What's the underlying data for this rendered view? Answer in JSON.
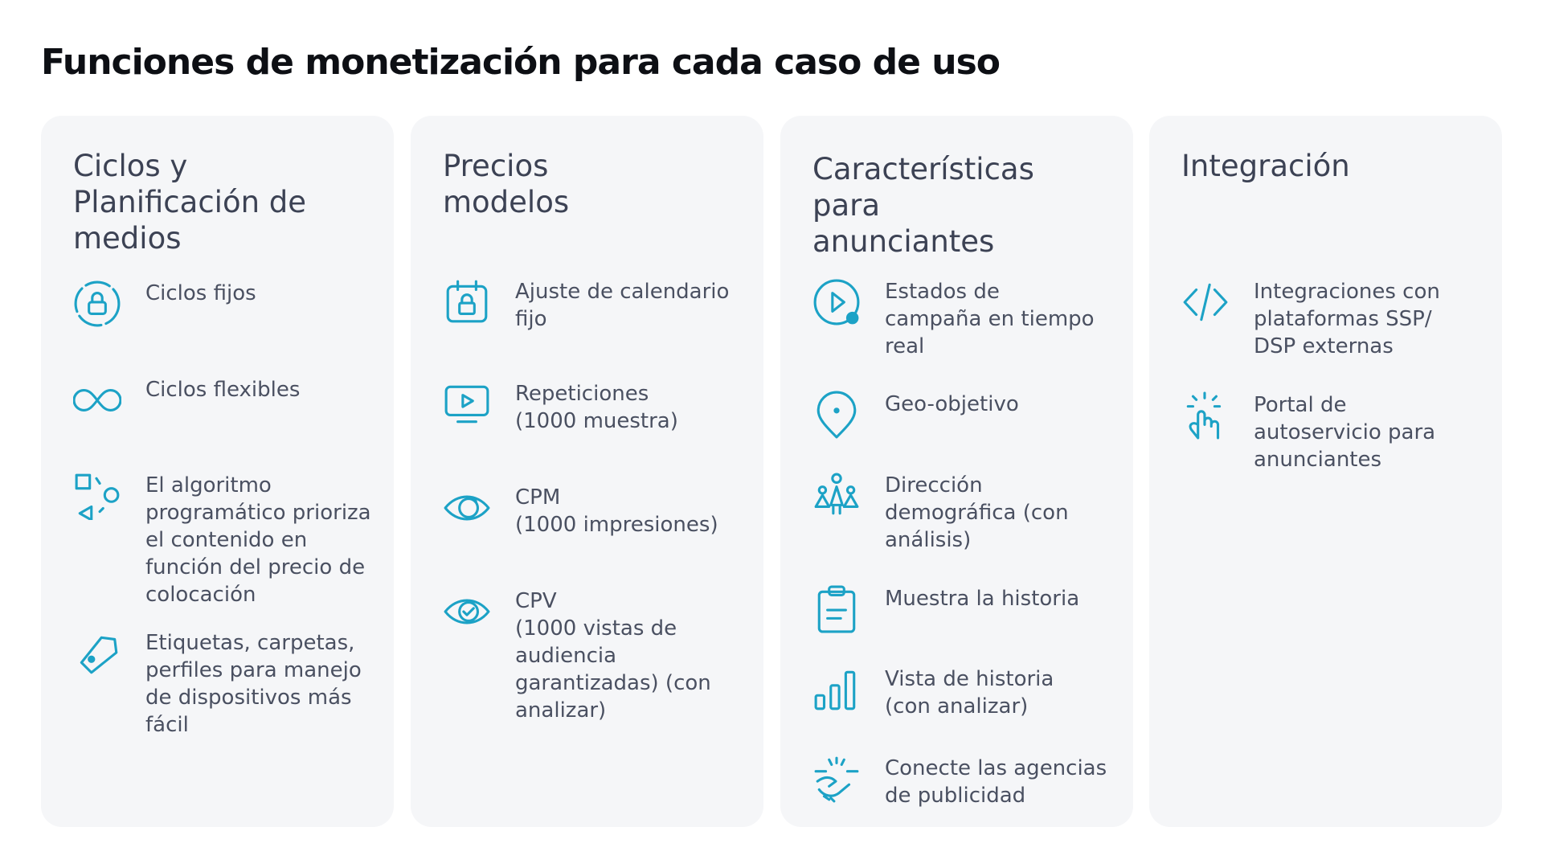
{
  "header": {
    "title": "Funciones de monetización para cada caso de uso"
  },
  "columns": [
    {
      "heading": "Ciclos y\nPlanificación de\nmedios",
      "items": [
        {
          "label": "Ciclos fijos"
        },
        {
          "label": "Ciclos flexibles"
        },
        {
          "label": "El algoritmo\nprogramático prioriza\nel contenido en\nfunción del precio de\ncolocación"
        },
        {
          "label": "Etiquetas, carpetas,\nperfiles para manejo\nde dispositivos más\nfácil"
        }
      ]
    },
    {
      "heading": "Precios\n modelos",
      "items": [
        {
          "label": "Ajuste de calendario\nfijo"
        },
        {
          "label": "Repeticiones\n(1000 muestra)"
        },
        {
          "label": "CPM\n(1000 impresiones)"
        },
        {
          "label": "CPV\n(1000 vistas de\naudiencia\ngarantizadas) (con\nanalizar)"
        }
      ]
    },
    {
      "heading": "Características\npara\nanunciantes",
      "items": [
        {
          "label": "Estados de\ncampaña en tiempo\nreal"
        },
        {
          "label": "Geo-objetivo"
        },
        {
          "label": "Dirección\ndemográfica (con\nanálisis)"
        },
        {
          "label": "Muestra la historia"
        },
        {
          "label": "Vista de historia\n (con analizar)"
        },
        {
          "label": "Conecte las agencias\nde publicidad"
        }
      ]
    },
    {
      "heading": "Integración",
      "items": [
        {
          "label": "Integraciones con\nplataformas SSP/\nDSP externas"
        },
        {
          "label": "Portal de\nautoservicio para\nanunciantes"
        }
      ]
    }
  ]
}
